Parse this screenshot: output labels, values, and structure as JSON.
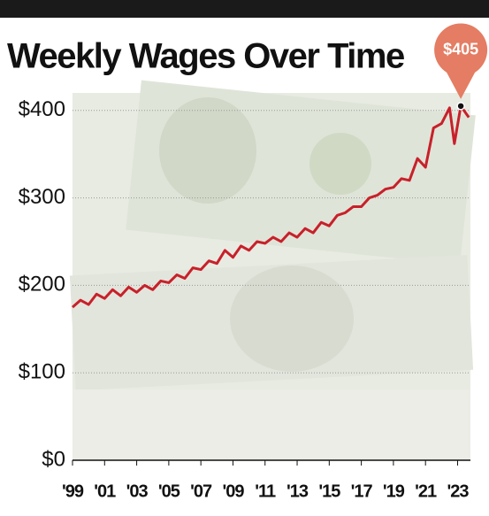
{
  "chart_data": {
    "type": "line",
    "title": "Weekly Wages Over Time",
    "x": [
      1999,
      1999.5,
      2000,
      2000.5,
      2001,
      2001.5,
      2002,
      2002.5,
      2003,
      2003.5,
      2004,
      2004.5,
      2005,
      2005.5,
      2006,
      2006.5,
      2007,
      2007.5,
      2008,
      2008.5,
      2009,
      2009.5,
      2010,
      2010.5,
      2011,
      2011.5,
      2012,
      2012.5,
      2013,
      2013.5,
      2014,
      2014.5,
      2015,
      2015.5,
      2016,
      2016.5,
      2017,
      2017.5,
      2018,
      2018.5,
      2019,
      2019.5,
      2020,
      2020.5,
      2021,
      2021.5,
      2022,
      2022.5,
      2022.8,
      2023.2,
      2023.7
    ],
    "series": [
      {
        "name": "Weekly wages",
        "color": "#c8202a",
        "values": [
          175,
          183,
          178,
          190,
          185,
          195,
          188,
          198,
          192,
          200,
          195,
          205,
          203,
          212,
          208,
          220,
          218,
          228,
          225,
          240,
          232,
          245,
          240,
          250,
          248,
          255,
          250,
          260,
          255,
          265,
          260,
          272,
          268,
          280,
          283,
          290,
          290,
          300,
          303,
          310,
          312,
          322,
          320,
          345,
          335,
          380,
          385,
          403,
          362,
          405,
          392
        ]
      }
    ],
    "callout": {
      "x": 2023.2,
      "value": 405,
      "label": "$405"
    },
    "xlim": [
      1999,
      2023.8
    ],
    "xticks": [
      {
        "value": 1999,
        "label": "'99"
      },
      {
        "value": 2001,
        "label": "'01"
      },
      {
        "value": 2003,
        "label": "'03"
      },
      {
        "value": 2005,
        "label": "'05"
      },
      {
        "value": 2007,
        "label": "'07"
      },
      {
        "value": 2009,
        "label": "'09"
      },
      {
        "value": 2011,
        "label": "'11"
      },
      {
        "value": 2013,
        "label": "'13"
      },
      {
        "value": 2015,
        "label": "'15"
      },
      {
        "value": 2017,
        "label": "'17"
      },
      {
        "value": 2019,
        "label": "'19"
      },
      {
        "value": 2021,
        "label": "'21"
      },
      {
        "value": 2023,
        "label": "'23"
      }
    ],
    "ylim": [
      0,
      420
    ],
    "yticks": [
      {
        "value": 0,
        "label": "$0"
      },
      {
        "value": 100,
        "label": "$100"
      },
      {
        "value": 200,
        "label": "$200"
      },
      {
        "value": 300,
        "label": "$300"
      },
      {
        "value": 400,
        "label": "$400"
      }
    ],
    "grid": true
  }
}
